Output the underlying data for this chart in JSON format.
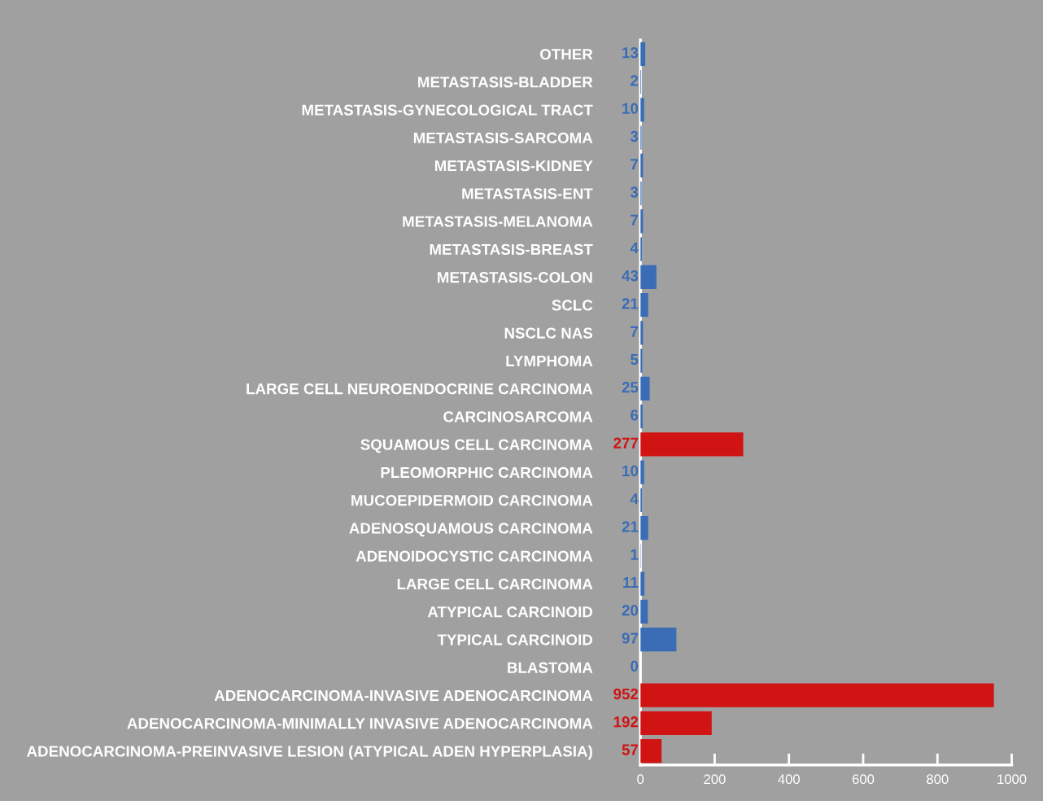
{
  "chart_data": {
    "type": "bar",
    "orientation": "horizontal",
    "categories": [
      "OTHER",
      "METASTASIS-BLADDER",
      "METASTASIS-GYNECOLOGICAL TRACT",
      "METASTASIS-SARCOMA",
      "METASTASIS-KIDNEY",
      "METASTASIS-ENT",
      "METASTASIS-MELANOMA",
      "METASTASIS-BREAST",
      "METASTASIS-COLON",
      "SCLC",
      "NSCLC NAS",
      "LYMPHOMA",
      "LARGE CELL NEUROENDOCRINE CARCINOMA",
      "CARCINOSARCOMA",
      "SQUAMOUS CELL CARCINOMA",
      "PLEOMORPHIC CARCINOMA",
      "MUCOEPIDERMOID CARCINOMA",
      "ADENOSQUAMOUS CARCINOMA",
      "ADENOIDOCYSTIC CARCINOMA",
      "LARGE CELL CARCINOMA",
      "ATYPICAL CARCINOID",
      "TYPICAL CARCINOID",
      "BLASTOMA",
      "ADENOCARCINOMA-INVASIVE ADENOCARCINOMA",
      "ADENOCARCINOMA-MINIMALLY INVASIVE ADENOCARCINOMA",
      "ADENOCARCINOMA-PREINVASIVE LESION (ATYPICAL ADEN HYPERPLASIA)"
    ],
    "values": [
      13,
      2,
      10,
      3,
      7,
      3,
      7,
      4,
      43,
      21,
      7,
      5,
      25,
      6,
      277,
      10,
      4,
      21,
      1,
      11,
      20,
      97,
      0,
      952,
      192,
      57
    ],
    "colors": [
      "#3a6db5",
      "#3a6db5",
      "#3a6db5",
      "#3a6db5",
      "#3a6db5",
      "#3a6db5",
      "#3a6db5",
      "#3a6db5",
      "#3a6db5",
      "#3a6db5",
      "#3a6db5",
      "#3a6db5",
      "#3a6db5",
      "#3a6db5",
      "#d01414",
      "#3a6db5",
      "#3a6db5",
      "#3a6db5",
      "#3a6db5",
      "#3a6db5",
      "#3a6db5",
      "#3a6db5",
      "#3a6db5",
      "#d01414",
      "#d01414",
      "#d01414"
    ],
    "xlim": [
      0,
      1000
    ],
    "xticks": [
      0,
      200,
      400,
      600,
      800,
      1000
    ],
    "data_labels": true,
    "grid": false,
    "legend": false
  }
}
